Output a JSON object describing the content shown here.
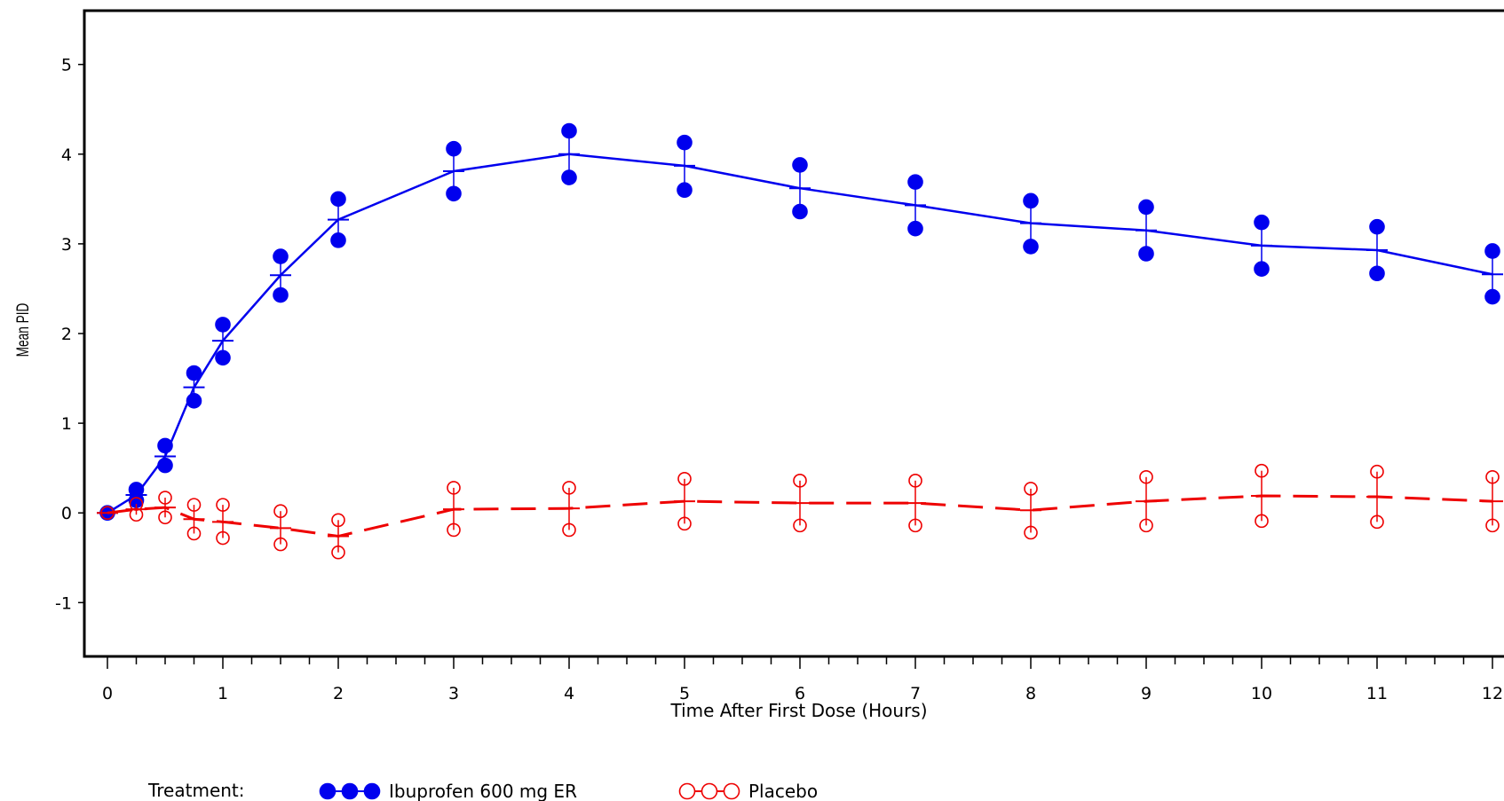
{
  "chart_data": {
    "type": "line",
    "xlabel": "Time After First Dose (Hours)",
    "ylabel": "Mean PID",
    "xlim": [
      -0.2,
      12.1
    ],
    "ylim": [
      -1.6,
      5.6
    ],
    "x_ticks": [
      0,
      1,
      2,
      3,
      4,
      5,
      6,
      7,
      8,
      9,
      10,
      11,
      12
    ],
    "x_tick_labels": [
      "0",
      "1",
      "2",
      "3",
      "4",
      "5",
      "6",
      "7",
      "8",
      "9",
      "10",
      "11",
      "12"
    ],
    "x_minor_tick_step": 0.25,
    "y_ticks": [
      -1,
      0,
      1,
      2,
      3,
      4,
      5
    ],
    "y_tick_labels": [
      "-1",
      "0",
      "1",
      "2",
      "3",
      "4",
      "5"
    ],
    "grid": false,
    "legend": {
      "placement": "bottom-left",
      "title": "Treatment:"
    },
    "series": [
      {
        "name": "Ibuprofen 600 mg ER",
        "color": "#0000ee",
        "line_style": "solid",
        "marker": "filled-circle",
        "x": [
          0,
          0.25,
          0.5,
          0.75,
          1,
          1.5,
          2,
          3,
          4,
          5,
          6,
          7,
          8,
          9,
          10,
          11,
          12
        ],
        "y": [
          0,
          0.2,
          0.63,
          1.4,
          1.92,
          2.65,
          3.27,
          3.81,
          4.0,
          3.87,
          3.62,
          3.43,
          3.23,
          3.15,
          2.98,
          2.93,
          2.66
        ],
        "lower": [
          0,
          0.14,
          0.53,
          1.25,
          1.73,
          2.43,
          3.04,
          3.56,
          3.74,
          3.6,
          3.36,
          3.17,
          2.97,
          2.89,
          2.72,
          2.67,
          2.41
        ],
        "upper": [
          0,
          0.26,
          0.75,
          1.56,
          2.1,
          2.86,
          3.5,
          4.06,
          4.26,
          4.13,
          3.88,
          3.69,
          3.48,
          3.41,
          3.24,
          3.19,
          2.92
        ]
      },
      {
        "name": "Placebo",
        "color": "#ee0000",
        "line_style": "dashed",
        "marker": "open-circle",
        "x": [
          0,
          0.25,
          0.5,
          0.75,
          1,
          1.5,
          2,
          3,
          4,
          5,
          6,
          7,
          8,
          9,
          10,
          11,
          12
        ],
        "y": [
          0,
          0.04,
          0.06,
          -0.07,
          -0.1,
          -0.17,
          -0.26,
          0.04,
          0.05,
          0.13,
          0.11,
          0.11,
          0.03,
          0.13,
          0.19,
          0.18,
          0.13
        ],
        "lower": [
          0,
          -0.02,
          -0.05,
          -0.23,
          -0.28,
          -0.35,
          -0.44,
          -0.19,
          -0.19,
          -0.12,
          -0.14,
          -0.14,
          -0.22,
          -0.14,
          -0.09,
          -0.1,
          -0.14
        ],
        "upper": [
          0,
          0.1,
          0.17,
          0.09,
          0.09,
          0.02,
          -0.08,
          0.28,
          0.28,
          0.38,
          0.36,
          0.36,
          0.27,
          0.4,
          0.47,
          0.46,
          0.4
        ]
      }
    ]
  }
}
